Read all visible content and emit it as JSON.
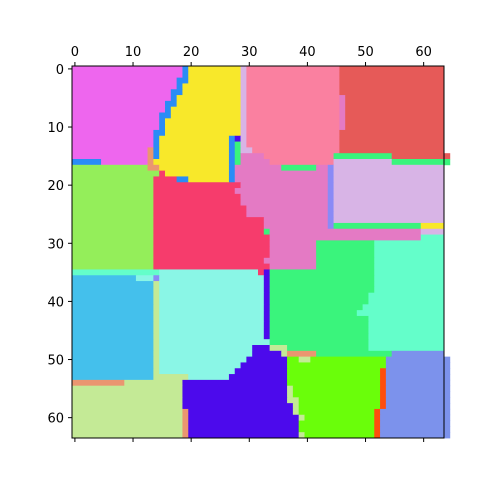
{
  "chart_data": {
    "type": "heatmap",
    "title": "",
    "xlabel": "",
    "ylabel": "",
    "xlim": [
      -0.5,
      63.5
    ],
    "ylim": [
      63.5,
      -0.5
    ],
    "x_axis_position": "top",
    "grid": false,
    "xticks": [
      0,
      10,
      20,
      30,
      40,
      50,
      60
    ],
    "yticks": [
      0,
      10,
      20,
      30,
      40,
      50,
      60
    ],
    "xtick_labels": [
      "0",
      "10",
      "20",
      "30",
      "40",
      "50",
      "60"
    ],
    "ytick_labels": [
      "0",
      "10",
      "20",
      "30",
      "40",
      "50",
      "60"
    ],
    "region_colors": [
      "#ee66ee",
      "#f8e82a",
      "#fa80a0",
      "#e65a58",
      "#94ee5a",
      "#f63c6c",
      "#e47ac4",
      "#d8b4e6",
      "#44c0ec",
      "#8af6e6",
      "#3af47c",
      "#64feca",
      "#c4ea96",
      "#4c0aec",
      "#6afe0a",
      "#7c92ec",
      "#ea9670",
      "#2a8cf6",
      "#8a8af6",
      "#fe4e0e"
    ],
    "rows": [
      "AAAAAAAAAAAAAAAAAAARBBBBBBBBBHCCCCCCCCCCCCCCCCDDDDDDDDDDDDDDDDDD",
      "AAAAAAAAAAAAAAAAAAARBBBBBBBBBHCCCCCCCCCCCCCCCCDDDDDDDDDDDDDDDDDD",
      "AAAAAAAAAAAAAAAAAARRBBBBBBBBBHCCCCCCCCCCCCCCCCDDDDDDDDDDDDDDDDDD",
      "AAAAAAAAAAAAAAAAAARBBBBBBBBBBHCCCCCCCCCCCCCCCCDDDDDDDDDDDDDDDDDD",
      "AAAAAAAAAAAAAAAAARRBBBBBBBBBBHCCCCCCCCCCCCCCCCDDDDDDDDDDDDDDDDDD",
      "AAAAAAAAAAAAAAAAARBBBBBBBBBBBHCCCCCCCCCCCCCCCCGDDDDDDDDDDDDDDDDD",
      "AAAAAAAAAAAAAAAARRBBBBBBBBBBBHCCCCCCCCCCCCCCCCGDDDDDDDDDDDDDDDDD",
      "AAAAAAAAAAAAAAAARBBBBBBBBBBBBHCCCCCCCCCCCCCCCCGDDDDDDDDDDDDDDDDD",
      "AAAAAAAAAAAAAAARRBBBBBBBBBBBBHCCCCCCCCCCCCCCCCGDDDDDDDDDDDDDDDDD",
      "AAAAAAAAAAAAAAARBBBBBBBBBBBBBHCCCCCCCCCCCCCCCCGDDDDDDDDDDDDDDDDD",
      "AAAAAAAAAAAAAAARBBBBBBBBBBBBBHCCCCCCCCCCCCCCCCGDDDDDDDDDDDDDDDDD",
      "AAAAAAAAAAAAAARRBBBBBBBBBBBBBHCCCCCCCCCCCCCCCCDDDDDDDDDDDDDDDDDD",
      "AAAAAAAAAAAAAARBBBBBBBBBBBBRNHCCCCCCCCCCCCCCCCDDDDDDDDDDDDDDDDDD",
      "AAAAAAAAAAAAAARBBBBBBBBBBBBRKHCCCCCCCCCCCCCCCCDDDDDDDDDDDDDDDDDD",
      "AAAAAAAAAAAAAQRBBBBBBBBBBBBRKHHCCCCCCCCCCCCCCCDDDDDDDDDDDDDDDDDD",
      "AAAAAAAAAAAAAQRBBBBBBBBBBBBRKGGGGCCCCCCCCCCCCKKKKKKKKKKDDDDDDDDDD",
      "RRRRRAAAAAAAAQBBBBBBBBBBBBBRKGGGGGCCCCCCCCCCCHHHHHHHHHHKKKKKKKKKK",
      "EEEEEEEEEEEEEQQBBBBBBBBBBBBRGGGGGGGGKKKKKKGGSHHHHHHHHHHHHHHHHHHH",
      "EEEEEEEEEEEEEEEFBBBBBBBBBBBRGGGGGGGGGGGGGGGGSHHHHHHHHHHHHHHHHHHH",
      "EEEEEEEEEEEEEEFFFFRRBBBBBBBRGGGGGGGGGGGGGGGGSHHHHHHHHHHHHHHHHHHH",
      "EEEEEEEEEEEEEEFFFFFFFFFFFFFFFGGGGGGGGGGGGGGGSHHHHHHHHHHHHHHHHHHH",
      "EEEEEEEEEEEEEEFFFFFFFFFFFFFFGGGGGGGGGGGGGGGGSHHHHHHHHHHHHHHHHHHH",
      "EEEEEEEEEEEEEEFFFFFFFFFFFFFFFGGGGGGGGGGGGGGGSHHHHHHHHHHHHHHHHHHH",
      "EEEEEEEEEEEEEEFFFFFFFFFFFFFFFGGGGGGGGGGGGGGGSHHHHHHHHHHHHHHHHHHH",
      "EEEEEEEEEEEEEEFFFFFFFFFFFFFFFFGGGGGGGGGGGGGGSHHHHHHHHHHHHHHHHHHH",
      "EEEEEEEEEEEEEEFFFFFFFFFFFFFFFFGGGGGGGGGGGGGGSHHHHHHHHHHHHHHHHHHH",
      "EEEEEEEEEEEEEEFFFFFFFFFFFFFFFFFFFGGGGGGGGGGGSHHHHHHHHHHHHHHHHHHH",
      "EEEEEEEEEEEEEEFFFFFFFFFFFFFFFFFFFGGGGGGGGGGGSKKKKKKKKKKKKKKKBBBB",
      "EEEEEEEEEEEEEEFFFFFFFFFFFFFFFFFFFKGGGGGGGGGGGGGGGGGGGGGGGGGGHHHH",
      "EEEEEEEEEEEEEEFFFFFFFFFFFFFFFFFFFFGGGGGGGGGGGGGGGGGGGGGGGGGGLLLL",
      "EEEEEEEEEEEEEEFFFFFFFFFFFFFFFFFFFFGGGGGGGGKKKKKKKKKKLLLLLLLLLLLL",
      "EEEEEEEEEEEEEEFFFFFFFFFFFFFFFFFFFFGGGGGGGGKKKKKKKKKKLLLLLLLLLLLL",
      "EEEEEEEEEEEEEEFFFFFFFFFFFFFFFFFFFFGGGGGGGGKKKKKKKKKKLLLLLLLLLLLL",
      "EEEEEEEEEEEEEEFFFFFFFFFFFFFFFFFFFGGGGGGGGGKKKKKKKKKKLLLLLLLLLLLL",
      "EEEEEEEEEEEEEEFFFFFFFFFFFFFFFFFFFFGGGGGGGGKKKKKKKKKKLLLLLLLLLLLL",
      "LLLLLLLLLLLLLLLJJJJJJJJJJJJJJJJJFNKKKKKKKKKKKKKKKKKKLLLLLLLLLLLL",
      "IIIIIIIIIIIJJJSJJJJJJJJJJJJJJJJJJNKKKKKKKKKKKKKKKKKKLLLLLLLLLLLL",
      "IIIIIIIIIIIIIIMJJJJJJJJJJJJJJJJJJNKKKKKKKKKKKKKKKKKKLLLLLLLLLLLL",
      "IIIIIIIIIIIIIIMJJJJJJJJJJJJJJJJJJNKKKKKKKKKKKKKKKKKKLLLLLLLLLLLL",
      "IIIIIIIIIIIIIIMJJJJJJJJJJJJJJJJJJNKKKKKKKKKKKKKKKKKLLLLLLLLLLLLL",
      "IIIIIIIIIIIIIIMJJJJJJJJJJJJJJJJJJNKKKKKKKKKKKKKKKKKLLLLLLLLLLLLL",
      "IIIIIIIIIIIIIIMJJJJJJJJJJJJJJJJJJNKKKKKKKKKKKKKKKKLLLLLLLLLLLLLL",
      "IIIIIIIIIIIIIIMJJJJJJJJJJJJJJJJJJNKKKKKKKKKKKKKKKLLLLLLLLLLLLLLL",
      "IIIIIIIIIIIIIIMJJJJJJJJJJJJJJJJJJNKKKKKKKKKKKKKKKKKLLLLLLLLLLLLL",
      "IIIIIIIIIIIIIIMJJJJJJJJJJJJJJJJJJNKKKKKKKKKKKKKKKKKLLLLLLLLLLLLL",
      "IIIIIIIIIIIIIIMJJJJJJJJJJJJJJJJJJNKKKKKKKKKKKKKKKKKLLLLLLLLLLLLL",
      "IIIIIIIIIIIIIIMJJJJJJJJJJJJJJJJJJNKKKKKKKKKKKKKKKKKLLLLLLLLLLLLL",
      "IIIIIIIIIIIIIIMJJJJJJJJJJJJJJJJJJJKKKKKKKKKKKKKKKKKLLLLLLLLLLLLL",
      "IIIIIIIIIIIIIIMJJJJJJJJJJJJJJJJNNNMMMKKKKKKKKKKKKKKLLLLLLLLLLLLL",
      "IIIIIIIIIIIIIIMJJJJJJJJJJJJJJJJNNNNNMQQQQQKKKKKKKKKKKKKPPPPPPPPP",
      "IIIIIIIIIIIIIIMJJJJJJJJJJJJJJJNNNNNNNOOMMOOOOOOOOOOOOOPPPPPPPPPPP",
      "IIIIIIIIIIIIIIMJJJJJJJJJJJJJJNNNNNNNNOOOOOOOOOOOOOOOOOPPPPPPPPPPP",
      "IIIIIIIIIIIIIIMJJJJJJJJJJJJJNNNNNNNNNOOOOOOOOOOOOOOOOTPPPPPPPPPPP",
      "IIIIIIIIIIIIIIMMMMMMJJJJJJJNNNNNNNNNNOOOOOOOOOOOOOOOOTPPPPPPPPPPP",
      "QQQQQQQQQMMMMMMMMMMNNNNNNNNNNNNNNNNNNOOOOOOOOOOOOOOOOTPPPPPPPPPPP",
      "MMMMMMMMMMMMMMMMMMMNNNNNNNNNNNNNNNNNNMOOOOOOOOOOOOOOOTPPPPPPPPPPP",
      "MMMMMMMMMMMMMMMMMMMNNNNNNNNNNNNNNNNNNMOOOOOOOOOOOOOOOTPPPPPPPPPPP",
      "MMMMMMMMMMMMMMMMMMMNNNNNNNNNNNNNNNNNNMMOOOOOOOOOOOOOOTPPPPPPPPPPP",
      "MMMMMMMMMMMMMMMMMMMNNNNNNNNNNNNNNNNNNNMOOOOOOOOOOOOOOTPPPPPPPPPPP",
      "MMMMMMMMMMMMMMMMMMMQNNNNNNNNNNNNNNNNNNMOOOOOOOOOOOOOTPPPPPPPPPPPP",
      "MMMMMMMMMMMMMMMMMMMQNNNNNNNNNNNNNNNNNNNMOOOOOOOOOOOOTPPPPPPPPPPPP",
      "MMMMMMMMMMMMMMMMMMMQNNNNNNNNNNNNNNNNNNNOOOOOOOOOOOOOTPPPPPPPPPPPP",
      "MMMMMMMMMMMMMMMMMMMQNNNNNNNNNNNNNNNNNNNOOOOOOOOOOOOOTPPPPPPPPPPPP",
      "MMMMMMMMMMMMMMMMMMMQNNNNNNNNNNNNNNNNNNNMOOOOOOOOOOOOTPPPPPPPPPPPP"
    ]
  }
}
